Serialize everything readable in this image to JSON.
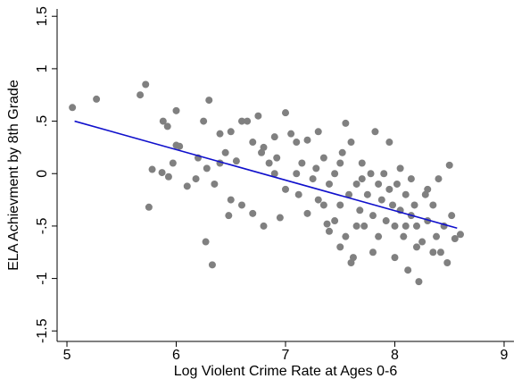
{
  "chart_data": {
    "type": "scatter",
    "x_label": "Log Violent Crime Rate at Ages 0-6",
    "y_label": "ELA Achievment by 8th Grade",
    "xlim": [
      4.91,
      9.09
    ],
    "ylim": [
      -1.6,
      1.57
    ],
    "xticks": [
      5,
      6,
      7,
      8,
      9
    ],
    "yticks": [
      {
        "value": -1.5,
        "label": "-1.5"
      },
      -1,
      {
        "value": -0.5,
        "label": "-.5"
      },
      0,
      {
        "value": 0.5,
        "label": ".5"
      },
      1,
      {
        "value": 1.5,
        "label": "1.5"
      }
    ],
    "color": "#808080",
    "x": [
      5.05,
      5.27,
      5.67,
      5.72,
      5.88,
      5.92,
      6.0,
      5.75,
      5.78,
      5.87,
      5.93,
      5.97,
      6.0,
      6.03,
      6.1,
      6.18,
      6.25,
      6.3,
      6.27,
      6.33,
      6.2,
      6.28,
      6.35,
      6.4,
      6.45,
      6.5,
      6.48,
      6.55,
      6.6,
      6.65,
      6.7,
      6.75,
      6.78,
      6.8,
      6.85,
      6.9,
      6.95,
      6.92,
      7.0,
      7.05,
      7.1,
      7.12,
      7.15,
      7.2,
      7.25,
      7.28,
      7.3,
      7.35,
      7.38,
      7.4,
      7.45,
      7.5,
      7.5,
      7.52,
      7.55,
      7.55,
      7.58,
      7.6,
      7.62,
      7.65,
      7.68,
      7.7,
      7.72,
      7.75,
      7.78,
      7.8,
      7.82,
      7.85,
      7.88,
      7.9,
      7.92,
      7.95,
      7.98,
      8.0,
      8.02,
      8.05,
      8.08,
      8.1,
      8.12,
      8.15,
      8.18,
      8.2,
      8.22,
      8.25,
      8.28,
      8.3,
      8.35,
      8.38,
      8.4,
      8.45,
      8.48,
      8.5,
      8.52,
      8.55,
      8.6,
      8.42,
      8.3,
      8.2,
      7.6,
      7.5,
      7.4,
      7.35,
      7.0,
      6.9,
      6.7,
      6.6,
      6.4,
      7.3,
      7.2,
      7.8,
      8.0,
      8.1,
      7.95,
      8.05,
      7.7,
      6.5,
      6.8,
      7.1,
      7.45,
      7.65,
      7.85,
      8.15,
      8.35
    ],
    "y": [
      0.63,
      0.71,
      0.75,
      0.85,
      0.5,
      0.45,
      0.6,
      -0.32,
      0.04,
      0.01,
      -0.03,
      0.1,
      0.27,
      0.26,
      -0.12,
      -0.05,
      0.5,
      0.7,
      -0.65,
      -0.87,
      0.15,
      0.05,
      -0.1,
      0.38,
      0.2,
      -0.25,
      -0.4,
      0.12,
      0.5,
      0.5,
      0.3,
      0.55,
      0.2,
      -0.5,
      0.1,
      0.35,
      -0.42,
      0.15,
      0.58,
      0.38,
      0.0,
      -0.2,
      0.1,
      0.32,
      -0.05,
      0.05,
      -0.25,
      0.15,
      -0.48,
      -0.1,
      0.0,
      0.1,
      -0.3,
      0.2,
      0.48,
      -0.6,
      -0.2,
      0.3,
      -0.8,
      -0.1,
      -0.35,
      0.1,
      -0.5,
      -0.2,
      0.0,
      -0.4,
      0.4,
      -0.6,
      -0.25,
      0.0,
      -0.45,
      -0.15,
      -0.3,
      -0.5,
      -0.1,
      -0.35,
      -0.6,
      -0.2,
      -0.92,
      -0.4,
      -0.3,
      -0.5,
      -1.03,
      -0.65,
      -0.2,
      -0.45,
      -0.3,
      -0.6,
      -0.05,
      -0.5,
      -0.85,
      0.08,
      -0.4,
      -0.62,
      -0.58,
      -0.75,
      -0.15,
      -0.7,
      -0.85,
      -0.7,
      -0.55,
      -0.3,
      -0.15,
      0.0,
      -0.38,
      -0.3,
      0.1,
      0.4,
      -0.38,
      -0.75,
      -0.8,
      -0.5,
      0.3,
      0.05,
      -0.05,
      0.4,
      0.25,
      0.3,
      -0.45,
      -0.5,
      -0.1,
      -0.05,
      -0.75
    ],
    "fit_line": {
      "x": [
        5.07,
        8.57
      ],
      "y": [
        0.5,
        -0.52
      ],
      "color": "#1010cc"
    }
  }
}
